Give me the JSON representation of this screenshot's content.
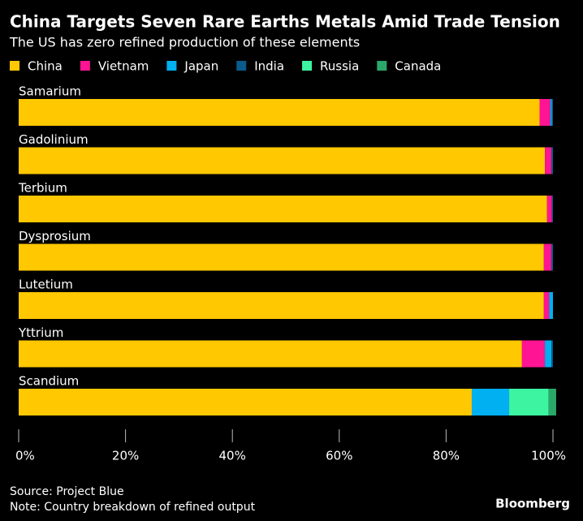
{
  "chart_data": {
    "type": "bar",
    "orientation": "horizontal",
    "stacked": true,
    "title": "China Targets Seven Rare Earths Metals Amid Trade Tension",
    "subtitle": "The US has zero refined production of these elements",
    "categories": [
      "Samarium",
      "Gadolinium",
      "Terbium",
      "Dysprosium",
      "Lutetium",
      "Yttrium",
      "Scandium"
    ],
    "series": [
      {
        "name": "China",
        "color": "#ffc800",
        "values": [
          97.5,
          98.5,
          98.9,
          98.3,
          98.3,
          94.2,
          84.8
        ]
      },
      {
        "name": "Vietnam",
        "color": "#ff1493",
        "values": [
          2,
          1.2,
          0.9,
          1.4,
          1,
          4.3,
          0
        ]
      },
      {
        "name": "Japan",
        "color": "#00b0f0",
        "values": [
          0.3,
          0,
          0,
          0,
          0.7,
          1.2,
          7
        ]
      },
      {
        "name": "India",
        "color": "#0a5a8c",
        "values": [
          0.2,
          0.3,
          0.2,
          0.3,
          0,
          0.3,
          0
        ]
      },
      {
        "name": "Russia",
        "color": "#3df5a0",
        "values": [
          0,
          0,
          0,
          0,
          0,
          0,
          7.4
        ]
      },
      {
        "name": "Canada",
        "color": "#2aa86a",
        "values": [
          0,
          0,
          0,
          0,
          0,
          0,
          1.4
        ]
      }
    ],
    "xlim": [
      0,
      100
    ],
    "xticks": [
      {
        "value": 0,
        "label": "0%"
      },
      {
        "value": 20,
        "label": "20%"
      },
      {
        "value": 40,
        "label": "40%"
      },
      {
        "value": 60,
        "label": "60%"
      },
      {
        "value": 80,
        "label": "80%"
      },
      {
        "value": 100,
        "label": "100%"
      }
    ],
    "source": "Source: Project Blue",
    "note": "Note: Country breakdown of refined output",
    "credit": "Bloomberg"
  }
}
